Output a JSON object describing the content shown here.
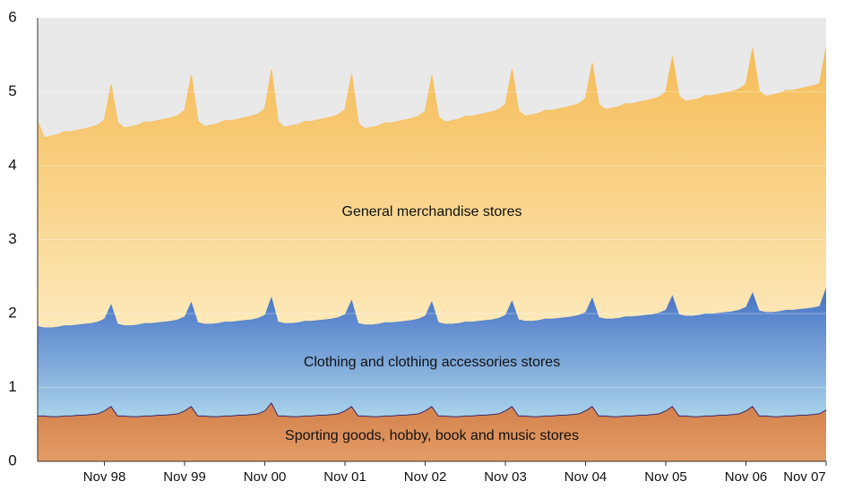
{
  "chart_data": {
    "type": "stacked_area",
    "categories": [
      null,
      null,
      null,
      null,
      null,
      null,
      null,
      null,
      null,
      null,
      "Nov 98",
      null,
      null,
      null,
      null,
      null,
      null,
      null,
      null,
      null,
      null,
      null,
      "Nov 99",
      null,
      null,
      null,
      null,
      null,
      null,
      null,
      null,
      null,
      null,
      null,
      "Nov 00",
      null,
      null,
      null,
      null,
      null,
      null,
      null,
      null,
      null,
      null,
      null,
      "Nov 01",
      null,
      null,
      null,
      null,
      null,
      null,
      null,
      null,
      null,
      null,
      null,
      "Nov 02",
      null,
      null,
      null,
      null,
      null,
      null,
      null,
      null,
      null,
      null,
      null,
      "Nov 03",
      null,
      null,
      null,
      null,
      null,
      null,
      null,
      null,
      null,
      null,
      null,
      "Nov 04",
      null,
      null,
      null,
      null,
      null,
      null,
      null,
      null,
      null,
      null,
      null,
      "Nov 05",
      null,
      null,
      null,
      null,
      null,
      null,
      null,
      null,
      null,
      null,
      null,
      "Nov 06",
      null,
      null,
      null,
      null,
      null,
      null,
      null,
      null,
      null,
      null,
      null,
      "Nov 07"
    ],
    "series": [
      {
        "name": "Sporting goods, hobby, book and music stores",
        "color": "#d98a55",
        "values": [
          0.62,
          0.62,
          0.61,
          0.61,
          0.62,
          0.62,
          0.63,
          0.63,
          0.64,
          0.65,
          0.69,
          0.75,
          0.62,
          0.62,
          0.61,
          0.61,
          0.62,
          0.62,
          0.63,
          0.63,
          0.64,
          0.65,
          0.69,
          0.75,
          0.62,
          0.62,
          0.61,
          0.61,
          0.62,
          0.62,
          0.63,
          0.63,
          0.64,
          0.65,
          0.69,
          0.8,
          0.62,
          0.62,
          0.61,
          0.61,
          0.62,
          0.62,
          0.63,
          0.63,
          0.64,
          0.65,
          0.69,
          0.75,
          0.62,
          0.62,
          0.61,
          0.61,
          0.62,
          0.62,
          0.63,
          0.63,
          0.64,
          0.65,
          0.69,
          0.75,
          0.62,
          0.62,
          0.61,
          0.61,
          0.62,
          0.62,
          0.63,
          0.63,
          0.64,
          0.65,
          0.69,
          0.75,
          0.62,
          0.62,
          0.61,
          0.61,
          0.62,
          0.62,
          0.63,
          0.63,
          0.64,
          0.65,
          0.69,
          0.75,
          0.62,
          0.62,
          0.61,
          0.61,
          0.62,
          0.62,
          0.63,
          0.63,
          0.64,
          0.65,
          0.69,
          0.75,
          0.62,
          0.62,
          0.61,
          0.61,
          0.62,
          0.62,
          0.63,
          0.63,
          0.64,
          0.65,
          0.69,
          0.75,
          0.62,
          0.62,
          0.61,
          0.61,
          0.62,
          0.62,
          0.63,
          0.63,
          0.64,
          0.65,
          0.7
        ]
      },
      {
        "name": "Clothing and clothing accessories stores",
        "color": "#4a78c8",
        "values": [
          1.21,
          1.19,
          1.2,
          1.21,
          1.22,
          1.22,
          1.22,
          1.23,
          1.23,
          1.24,
          1.24,
          1.38,
          1.24,
          1.22,
          1.23,
          1.24,
          1.25,
          1.25,
          1.25,
          1.26,
          1.26,
          1.27,
          1.27,
          1.41,
          1.26,
          1.24,
          1.25,
          1.26,
          1.27,
          1.27,
          1.27,
          1.28,
          1.28,
          1.29,
          1.29,
          1.43,
          1.27,
          1.25,
          1.26,
          1.27,
          1.28,
          1.28,
          1.28,
          1.29,
          1.29,
          1.3,
          1.3,
          1.44,
          1.25,
          1.23,
          1.24,
          1.25,
          1.26,
          1.26,
          1.26,
          1.27,
          1.27,
          1.28,
          1.28,
          1.42,
          1.26,
          1.24,
          1.25,
          1.26,
          1.27,
          1.27,
          1.27,
          1.28,
          1.28,
          1.29,
          1.29,
          1.43,
          1.3,
          1.28,
          1.29,
          1.3,
          1.31,
          1.31,
          1.31,
          1.32,
          1.32,
          1.33,
          1.33,
          1.47,
          1.33,
          1.31,
          1.32,
          1.33,
          1.34,
          1.34,
          1.34,
          1.35,
          1.35,
          1.36,
          1.36,
          1.5,
          1.37,
          1.35,
          1.36,
          1.37,
          1.38,
          1.38,
          1.38,
          1.39,
          1.39,
          1.4,
          1.4,
          1.54,
          1.42,
          1.4,
          1.41,
          1.42,
          1.43,
          1.43,
          1.43,
          1.44,
          1.44,
          1.45,
          1.65
        ]
      },
      {
        "name": "General merchandise stores",
        "color": "#f5c265",
        "values": [
          2.77,
          2.57,
          2.59,
          2.6,
          2.62,
          2.62,
          2.63,
          2.64,
          2.65,
          2.66,
          2.69,
          2.97,
          2.72,
          2.67,
          2.69,
          2.7,
          2.72,
          2.72,
          2.73,
          2.74,
          2.75,
          2.76,
          2.79,
          3.07,
          2.72,
          2.67,
          2.69,
          2.7,
          2.72,
          2.72,
          2.73,
          2.74,
          2.75,
          2.76,
          2.79,
          3.07,
          2.7,
          2.65,
          2.67,
          2.68,
          2.7,
          2.7,
          2.71,
          2.72,
          2.73,
          2.74,
          2.77,
          3.05,
          2.7,
          2.65,
          2.67,
          2.68,
          2.7,
          2.7,
          2.71,
          2.72,
          2.73,
          2.74,
          2.77,
          3.05,
          2.78,
          2.73,
          2.75,
          2.76,
          2.78,
          2.78,
          2.79,
          2.8,
          2.81,
          2.82,
          2.85,
          3.13,
          2.82,
          2.77,
          2.79,
          2.8,
          2.82,
          2.82,
          2.83,
          2.84,
          2.85,
          2.86,
          2.89,
          3.17,
          2.88,
          2.83,
          2.85,
          2.86,
          2.88,
          2.88,
          2.89,
          2.9,
          2.91,
          2.92,
          2.95,
          3.23,
          2.95,
          2.9,
          2.92,
          2.93,
          2.95,
          2.95,
          2.96,
          2.97,
          2.98,
          2.99,
          3.02,
          3.3,
          2.97,
          2.92,
          2.94,
          2.95,
          2.97,
          2.97,
          2.98,
          2.99,
          3.0,
          3.01,
          3.25
        ]
      }
    ],
    "ylim": [
      0,
      6
    ],
    "yticks": [
      0,
      1,
      2,
      3,
      4,
      5,
      6
    ],
    "grid": true
  }
}
